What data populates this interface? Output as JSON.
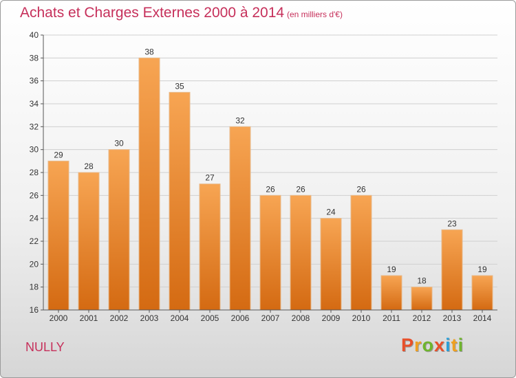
{
  "chart_data": {
    "type": "bar",
    "title": "Achats et Charges Externes 2000 à 2014",
    "subtitle": "(en milliers d'€)",
    "categories": [
      "2000",
      "2001",
      "2002",
      "2003",
      "2004",
      "2005",
      "2006",
      "2007",
      "2008",
      "2009",
      "2010",
      "2011",
      "2012",
      "2013",
      "2014"
    ],
    "values": [
      29,
      28,
      30,
      38,
      35,
      27,
      32,
      26,
      26,
      24,
      26,
      19,
      18,
      23,
      19
    ],
    "ylim": [
      16,
      40
    ],
    "yticks": [
      16,
      18,
      20,
      22,
      24,
      26,
      28,
      30,
      32,
      34,
      36,
      38,
      40
    ],
    "grid": true,
    "bar_color": "#ef8a30",
    "text_color": "#c62f5a"
  },
  "footer": {
    "location": "NULLY",
    "logo_letters": [
      "P",
      "r",
      "o",
      "x",
      "i",
      "t",
      "i"
    ],
    "logo_colors": [
      "#e8502a",
      "#f0a020",
      "#6fb52d",
      "#e8502a",
      "#2a9fd8",
      "#f0a020",
      "#6fb52d"
    ]
  }
}
